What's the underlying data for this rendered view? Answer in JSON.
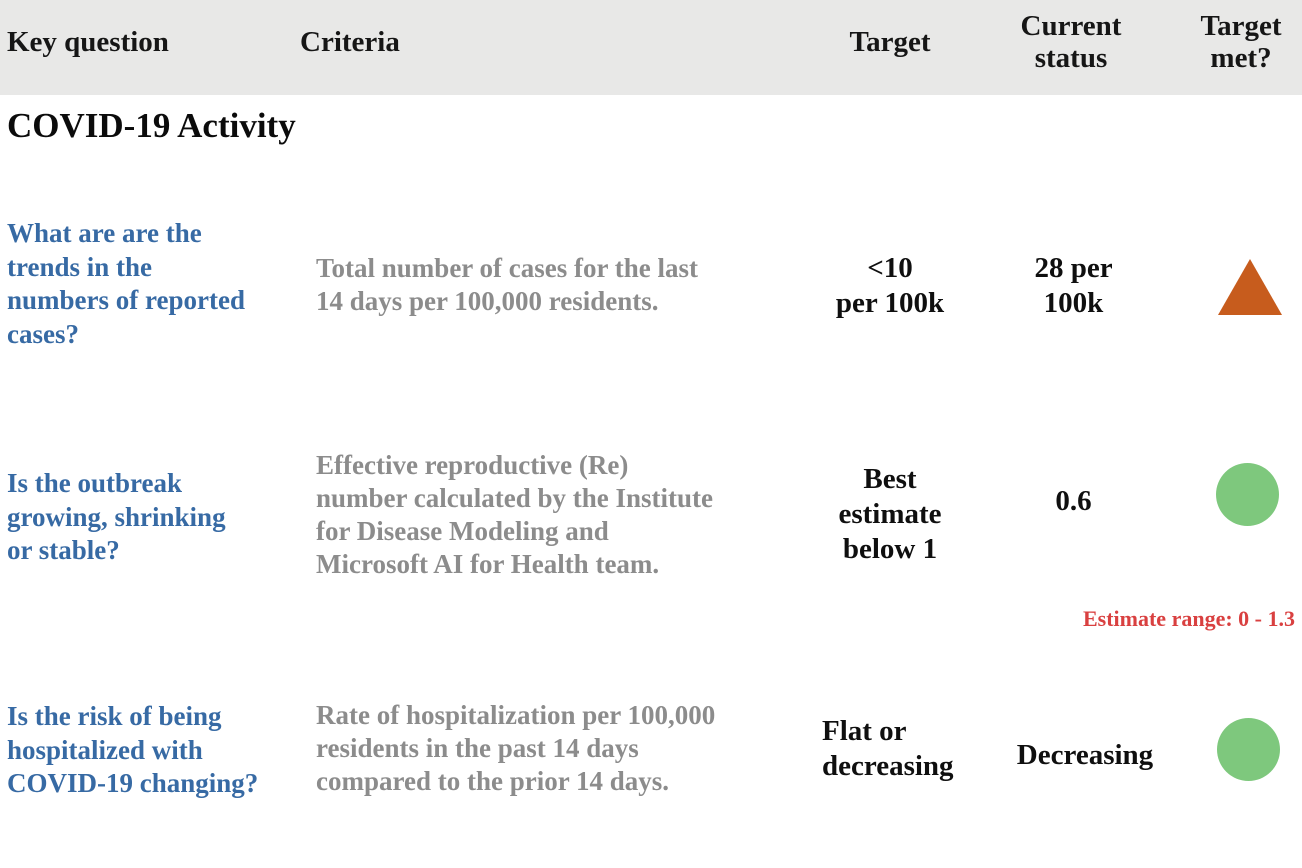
{
  "header": {
    "key_question": "Key question",
    "criteria": "Criteria",
    "target": "Target",
    "current_status": "Current\nstatus",
    "target_met": "Target\nmet?"
  },
  "section_title": "COVID-19 Activity",
  "rows": [
    {
      "question": "What are are the\ntrends in the\nnumbers of reported\ncases?",
      "criteria": "Total number of cases for the last\n14 days per 100,000 residents.",
      "target": "<10\nper 100k",
      "status": "28 per\n100k",
      "indicator": "triangle-up-icon",
      "indicator_meaning": "target not met",
      "indicator_color": "#c75c1d"
    },
    {
      "question": "Is the outbreak\ngrowing, shrinking\nor stable?",
      "criteria": "Effective reproductive (Re)\nnumber calculated by the Institute\nfor Disease Modeling and\nMicrosoft AI for Health team.",
      "target": "Best\nestimate\nbelow 1",
      "status": "0.6",
      "indicator": "circle-icon",
      "indicator_meaning": "target met",
      "indicator_color": "#7ec87d",
      "note": "Estimate range: 0 - 1.3"
    },
    {
      "question": "Is the risk of being\nhospitalized with\nCOVID-19 changing?",
      "criteria": "Rate of hospitalization per 100,000\nresidents in the past 14 days\ncompared to the prior 14 days.",
      "target": "Flat or\ndecreasing",
      "status": "Decreasing",
      "indicator": "circle-icon",
      "indicator_meaning": "target met",
      "indicator_color": "#7ec87d"
    }
  ],
  "colors": {
    "header_bg": "#e8e8e7",
    "question_blue": "#376aa4",
    "criteria_gray": "#8c8c8c",
    "note_red": "#d94040",
    "triangle_orange": "#c75c1d",
    "circle_green": "#7ec87d"
  }
}
